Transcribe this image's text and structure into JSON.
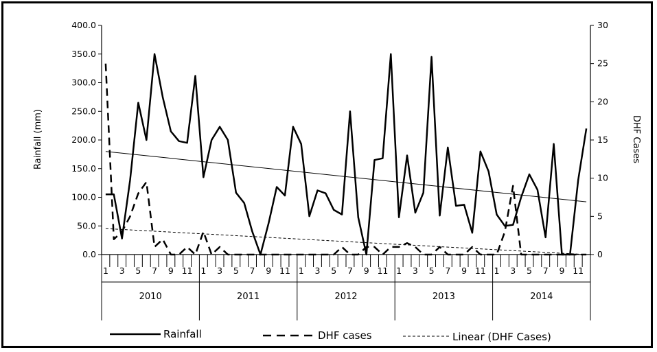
{
  "chart_data": {
    "type": "line",
    "ylabel": "Rainfall (mm)",
    "y2label": "DHF Cases",
    "ylim": [
      0,
      400
    ],
    "y2lim": [
      0,
      30
    ],
    "y_ticks": [
      "0.0",
      "50.0",
      "100.0",
      "150.0",
      "200.0",
      "250.0",
      "300.0",
      "350.0",
      "400.0"
    ],
    "y2_ticks": [
      "0",
      "5",
      "10",
      "15",
      "20",
      "25",
      "30"
    ],
    "month_labels": [
      "1",
      "",
      "3",
      "",
      "5",
      "",
      "7",
      "",
      "9",
      "",
      "11",
      ""
    ],
    "years": [
      "2010",
      "2011",
      "2012",
      "2013",
      "2014"
    ],
    "series": [
      {
        "name": "Rainfall",
        "axis": "left",
        "style": "solid",
        "values": [
          105,
          105,
          28,
          130,
          265,
          200,
          350,
          275,
          215,
          198,
          195,
          312,
          135,
          200,
          223,
          200,
          108,
          90,
          40,
          0,
          55,
          118,
          103,
          223,
          193,
          67,
          112,
          107,
          78,
          70,
          250,
          65,
          0,
          165,
          168,
          350,
          65,
          173,
          73,
          108,
          345,
          68,
          187,
          85,
          87,
          38,
          180,
          145,
          70,
          50,
          52,
          100,
          140,
          113,
          30,
          193,
          0,
          0,
          130,
          220
        ]
      },
      {
        "name": "DHF cases",
        "axis": "right",
        "style": "dashed",
        "values": [
          25,
          2,
          3,
          5,
          8,
          9.5,
          1,
          2,
          0,
          0,
          1,
          0,
          3,
          0,
          1,
          0,
          0,
          0,
          0,
          0,
          0,
          0,
          0,
          0,
          0,
          0,
          0,
          0,
          0,
          1,
          0,
          0,
          1,
          1,
          0,
          1,
          1,
          1.5,
          1,
          0,
          0,
          1,
          0,
          0,
          0,
          1,
          0,
          0,
          0,
          3,
          9,
          0,
          0,
          0,
          0,
          0,
          0,
          0,
          0,
          0
        ]
      }
    ],
    "trend": {
      "name": "Linear (DHF Cases)",
      "axis": "right",
      "style": "dotted",
      "start": 3.4,
      "end": 0
    },
    "rainfall_trend": {
      "axis": "left",
      "style": "solid-thin",
      "start": 180,
      "end": 92
    },
    "legend": [
      "Rainfall",
      "DHF cases",
      "Linear (DHF Cases)"
    ],
    "legend_position": "bottom"
  }
}
